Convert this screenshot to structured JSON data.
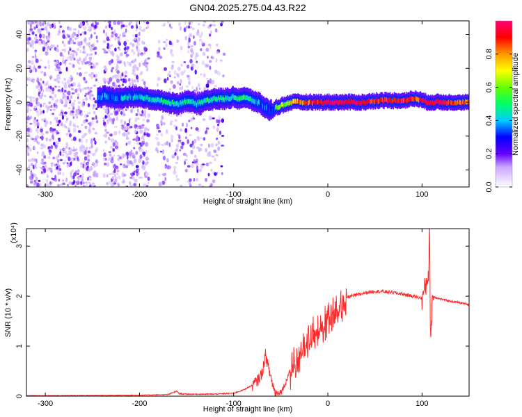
{
  "title": "GN04.2025.275.04.43.R22",
  "colors": {
    "snr_line": "#ff2a2a",
    "axes": "#000000",
    "background": "#ffffff"
  },
  "chart_data": [
    {
      "type": "heatmap",
      "name": "spectrogram",
      "xlabel": "Height of straight line (km)",
      "ylabel": "Frequency (Hz)",
      "xlim": [
        -320,
        150
      ],
      "ylim": [
        -50,
        48
      ],
      "xticks": [
        -300,
        -200,
        -100,
        0,
        100
      ],
      "xtick_labels": [
        "-300",
        "-200",
        "-100",
        "0",
        "100"
      ],
      "yticks": [
        -40,
        -20,
        0,
        20,
        40
      ],
      "ytick_labels": [
        "-40",
        "-20",
        "0",
        "20",
        "40"
      ],
      "colorbar": {
        "label": "Normalized spectral amplitude",
        "range": [
          0,
          1
        ],
        "ticks": [
          0.0,
          0.2,
          0.4,
          0.6,
          0.8
        ],
        "tick_labels": [
          "0.0",
          "0.2",
          "0.4",
          "0.6",
          "0.8"
        ]
      },
      "ridge": {
        "x": [
          -245,
          -238,
          -232,
          -225,
          -215,
          -200,
          -190,
          -180,
          -170,
          -160,
          -150,
          -140,
          -130,
          -120,
          -110,
          -100,
          -95,
          -90,
          -85,
          -80,
          -75,
          -70,
          -65,
          -60,
          -55,
          -50,
          -45,
          -40,
          -30,
          -20,
          -10,
          0,
          10,
          20,
          30,
          40,
          50,
          60,
          70,
          80,
          90,
          95,
          100,
          105,
          110,
          120,
          130,
          140,
          150
        ],
        "freq": [
          2,
          4,
          3,
          2,
          3,
          3,
          2,
          1,
          0,
          -1,
          1,
          -1,
          1,
          2,
          2,
          3,
          2,
          3,
          2,
          1,
          0,
          -2,
          -4,
          -5,
          -3,
          -2,
          -1,
          0,
          0,
          0,
          0,
          0,
          0,
          0,
          0,
          0,
          1,
          1,
          1,
          1,
          2,
          2,
          1,
          0,
          0,
          0,
          0,
          0,
          0
        ],
        "amplitude": [
          0.3,
          0.35,
          0.3,
          0.35,
          0.4,
          0.4,
          0.45,
          0.45,
          0.5,
          0.45,
          0.45,
          0.45,
          0.5,
          0.5,
          0.45,
          0.5,
          0.55,
          0.5,
          0.45,
          0.45,
          0.4,
          0.35,
          0.3,
          0.25,
          0.55,
          0.6,
          0.65,
          0.7,
          0.8,
          0.85,
          0.9,
          0.95,
          0.95,
          0.95,
          0.95,
          0.95,
          0.9,
          0.9,
          0.9,
          0.9,
          0.9,
          0.85,
          0.95,
          0.95,
          0.95,
          0.95,
          0.9,
          0.85,
          0.85
        ]
      },
      "noise_region_km": [
        -320,
        -110
      ]
    },
    {
      "type": "line",
      "name": "snr",
      "xlabel": "Height of straight line (km)",
      "ylabel": "SNR (10 * v/v)",
      "multiplier_label": "(x10⁴)",
      "xlim": [
        -320,
        150
      ],
      "ylim": [
        0,
        3.35
      ],
      "xticks": [
        -300,
        -200,
        -100,
        0,
        100
      ],
      "xtick_labels": [
        "-300",
        "-200",
        "-100",
        "0",
        "100"
      ],
      "yticks": [
        0,
        1,
        2,
        3
      ],
      "ytick_labels": [
        "0",
        "1",
        "2",
        "3"
      ],
      "x": [
        -320,
        -300,
        -250,
        -200,
        -170,
        -160,
        -158,
        -150,
        -120,
        -100,
        -90,
        -80,
        -75,
        -70,
        -66,
        -63,
        -60,
        -57,
        -55,
        -50,
        -45,
        -40,
        -35,
        -30,
        -25,
        -20,
        -15,
        -10,
        -5,
        0,
        5,
        10,
        15,
        20,
        25,
        30,
        40,
        50,
        60,
        70,
        80,
        90,
        95,
        100,
        104,
        107,
        108,
        109,
        111,
        115,
        120,
        130,
        140,
        150
      ],
      "y": [
        0.01,
        0.01,
        0.015,
        0.02,
        0.03,
        0.1,
        0.05,
        0.04,
        0.04,
        0.06,
        0.12,
        0.22,
        0.3,
        0.45,
        0.85,
        0.55,
        0.35,
        0.12,
        0.07,
        0.08,
        0.25,
        0.55,
        0.75,
        0.9,
        1.05,
        1.2,
        1.35,
        1.45,
        1.5,
        1.6,
        1.75,
        1.85,
        1.9,
        1.98,
        2.0,
        2.02,
        2.07,
        2.1,
        2.09,
        2.07,
        2.04,
        2.0,
        1.98,
        1.96,
        2.2,
        2.5,
        3.3,
        1.1,
        2.0,
        1.97,
        1.94,
        1.9,
        1.87,
        1.83
      ],
      "color": "#ff2a2a"
    }
  ]
}
